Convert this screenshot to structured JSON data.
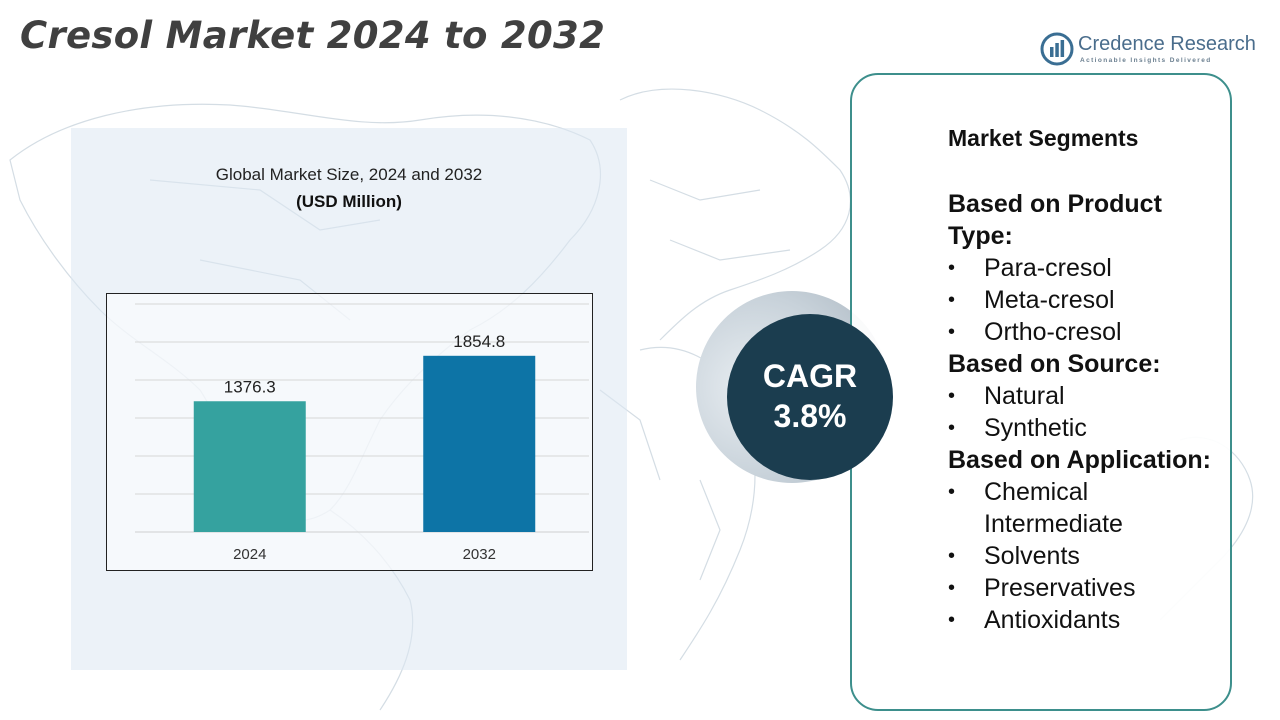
{
  "title": "Cresol Market 2024 to 2032",
  "brand": {
    "name": "Credence Research",
    "tagline": "Actionable Insights Delivered",
    "logo_icon": "bar-chart-circle-icon"
  },
  "chart_panel": {
    "title": "Global Market Size,  2024 and 2032",
    "unit": "(USD Million)"
  },
  "chart_data": {
    "type": "bar",
    "categories": [
      "2024",
      "2032"
    ],
    "values": [
      1376.3,
      1854.8
    ],
    "data_labels": [
      "1376.3",
      "1854.8"
    ],
    "bar_colors": [
      "#35a29f",
      "#0d74a6"
    ],
    "title": "Global Market Size,  2024 and 2032",
    "ylabel": "(USD Million)",
    "ylim": [
      0,
      2400
    ],
    "grid": true,
    "legend": "none"
  },
  "cagr": {
    "label": "CAGR",
    "value": "3.8%"
  },
  "segments": {
    "heading": "Market Segments",
    "groups": [
      {
        "title": "Based on Product Type:",
        "items": [
          "Para-cresol",
          "Meta-cresol",
          "Ortho-cresol"
        ]
      },
      {
        "title": "Based on Source:",
        "items": [
          "Natural",
          "Synthetic"
        ]
      },
      {
        "title": "Based on Application:",
        "items": [
          "Chemical Intermediate",
          "Solvents",
          "Preservatives",
          "Antioxidants"
        ]
      }
    ],
    "bullet": "•"
  },
  "colors": {
    "title": "#404040",
    "card_border": "#3d8f8c",
    "cagr_circle": "#1b3d4f",
    "panel_bg": "#dce8f2"
  }
}
